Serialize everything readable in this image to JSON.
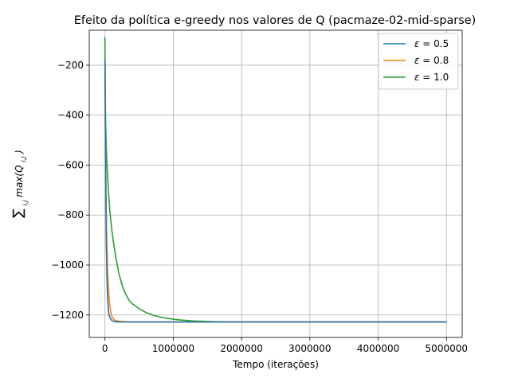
{
  "chart_data": {
    "type": "line",
    "title": "Efeito da política e-greedy nos valores de Q (pacmaze-02-mid-sparse)",
    "xlabel": "Tempo (iterações)",
    "ylabel_sum": "∑",
    "ylabel_sum_sub": "i,j",
    "ylabel_main": "max(Q",
    "ylabel_main_sub": "i,j",
    "ylabel_close": ")",
    "xlim": [
      -230000,
      5230000
    ],
    "ylim": [
      -1290,
      -60
    ],
    "xticks": [
      0,
      1000000,
      2000000,
      3000000,
      4000000,
      5000000
    ],
    "xtick_labels": [
      "0",
      "1000000",
      "2000000",
      "3000000",
      "4000000",
      "5000000"
    ],
    "yticks": [
      -1200,
      -1000,
      -800,
      -600,
      -400,
      -200
    ],
    "ytick_labels": [
      "−1200",
      "−1000",
      "−800",
      "−600",
      "−400",
      "−200"
    ],
    "grid": true,
    "legend_position": "top-right",
    "legend_prefix": "ε = ",
    "series": [
      {
        "name": "0.5",
        "color": "#1f77b4",
        "x": [
          0,
          5000,
          10000,
          15000,
          20000,
          30000,
          40000,
          50000,
          60000,
          80000,
          100000,
          130000,
          160000,
          200000,
          300000,
          500000,
          1000000,
          2000000,
          3000000,
          4000000,
          5000000
        ],
        "y": [
          -180,
          -430,
          -640,
          -800,
          -920,
          -1060,
          -1140,
          -1180,
          -1200,
          -1215,
          -1222,
          -1226,
          -1227,
          -1228,
          -1228,
          -1228,
          -1228,
          -1228,
          -1228,
          -1228,
          -1228
        ]
      },
      {
        "name": "0.8",
        "color": "#ff7f0e",
        "x": [
          0,
          5000,
          10000,
          15000,
          20000,
          30000,
          40000,
          50000,
          60000,
          70000,
          80000,
          100000,
          120000,
          150000,
          200000,
          250000,
          300000,
          400000,
          600000,
          1000000,
          2000000,
          3000000,
          4000000,
          5000000
        ],
        "y": [
          -190,
          -380,
          -560,
          -700,
          -800,
          -940,
          -1030,
          -1090,
          -1130,
          -1160,
          -1180,
          -1205,
          -1215,
          -1222,
          -1225,
          -1226,
          -1227,
          -1228,
          -1228,
          -1228,
          -1228,
          -1228,
          -1228,
          -1228
        ]
      },
      {
        "name": "1.0",
        "color": "#2ca02c",
        "x": [
          0,
          2000,
          5000,
          10000,
          20000,
          30000,
          50000,
          70000,
          100000,
          130000,
          160000,
          200000,
          250000,
          300000,
          350000,
          400000,
          450000,
          500000,
          600000,
          700000,
          800000,
          900000,
          1000000,
          1100000,
          1200000,
          1300000,
          1400000,
          1500000,
          1600000,
          1800000,
          2000000,
          3000000,
          4000000,
          5000000
        ],
        "y": [
          -90,
          -200,
          -330,
          -430,
          -530,
          -600,
          -700,
          -780,
          -860,
          -920,
          -970,
          -1030,
          -1080,
          -1115,
          -1140,
          -1155,
          -1165,
          -1175,
          -1190,
          -1200,
          -1208,
          -1213,
          -1217,
          -1220,
          -1222,
          -1224,
          -1225,
          -1226,
          -1227,
          -1228,
          -1228,
          -1228,
          -1228,
          -1228
        ]
      }
    ]
  }
}
